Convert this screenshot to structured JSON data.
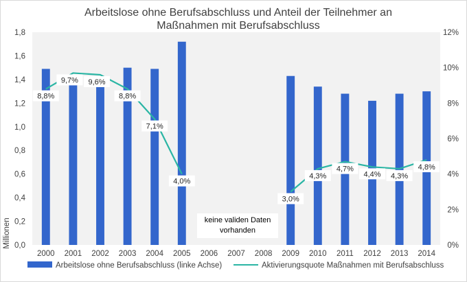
{
  "chart_data": {
    "type": "bar+line",
    "title": [
      "Arbeitslose ohne Berufsabschluss und Anteil der Teilnehmer an",
      "Maßnahmen mit Berufsabschluss"
    ],
    "categories": [
      "2000",
      "2001",
      "2002",
      "2003",
      "2004",
      "2005",
      "2006",
      "2007",
      "2008",
      "2009",
      "2010",
      "2011",
      "2012",
      "2013",
      "2014"
    ],
    "series": [
      {
        "name": "Arbeitslose ohne Berufsabschluss (linke Achse)",
        "type": "bar",
        "axis": "left",
        "color": "#3366cc",
        "values": [
          1.49,
          1.41,
          1.41,
          1.5,
          1.49,
          1.72,
          null,
          null,
          null,
          1.43,
          1.34,
          1.28,
          1.22,
          1.28,
          1.3
        ]
      },
      {
        "name": "Aktivierungsquote Maßnahmen mit Berufsabschluss",
        "type": "line",
        "axis": "right",
        "color": "#2ab5a4",
        "values": [
          8.8,
          9.7,
          9.6,
          8.8,
          7.1,
          4.0,
          null,
          null,
          null,
          3.0,
          4.3,
          4.7,
          4.4,
          4.3,
          4.8
        ],
        "labels": [
          "8,8%",
          "9,7%",
          "9,6%",
          "8,8%",
          "7,1%",
          "4,0%",
          null,
          null,
          null,
          "3,0%",
          "4,3%",
          "4,7%",
          "4,4%",
          "4,3%",
          "4,8%"
        ]
      }
    ],
    "left_axis": {
      "label": "Millionen",
      "min": 0,
      "max": 1.8,
      "step": 0.2,
      "ticks": [
        "0,0",
        "0,2",
        "0,4",
        "0,6",
        "0,8",
        "1,0",
        "1,2",
        "1,4",
        "1,6",
        "1,8"
      ]
    },
    "right_axis": {
      "min": 0,
      "max": 12,
      "step": 2,
      "ticks": [
        "0%",
        "2%",
        "4%",
        "6%",
        "8%",
        "10%",
        "12%"
      ]
    },
    "annotation": [
      "keine validen  Daten",
      "vorhanden"
    ],
    "legend_position": "bottom",
    "grid": false
  },
  "colors": {
    "plot_background": "#f2f2f2",
    "bar": "#3366cc",
    "line": "#2ab5a4"
  }
}
